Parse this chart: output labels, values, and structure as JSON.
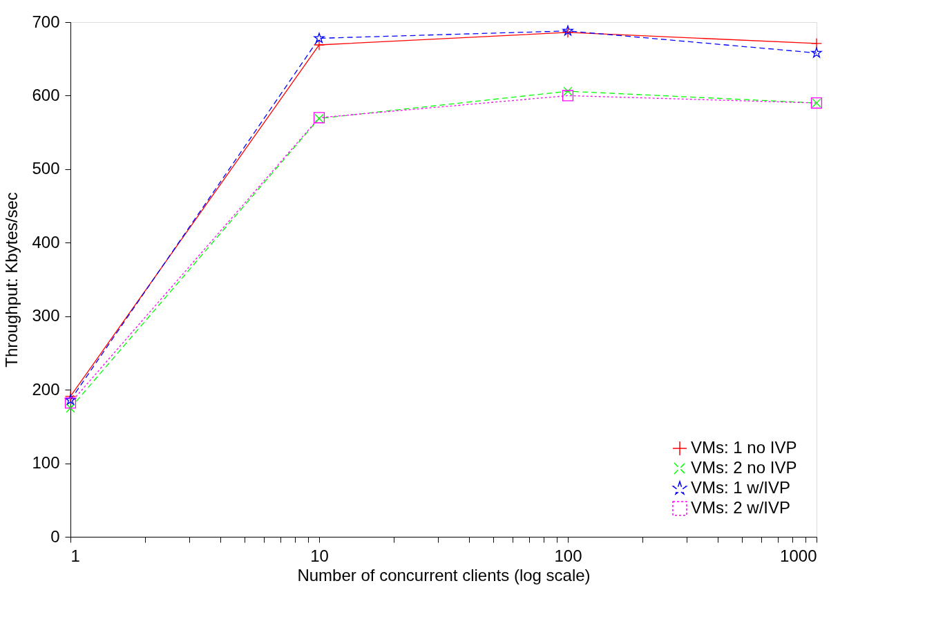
{
  "chart_data": {
    "type": "line",
    "xlabel": "Number of concurrent clients (log scale)",
    "ylabel": "Throughput: Kbytes/sec",
    "x": [
      1,
      10,
      100,
      1000
    ],
    "log": "x",
    "xlim": [
      1,
      1000
    ],
    "xticks": [
      1,
      {
        "value": 2,
        "label": null
      },
      {
        "value": 3,
        "label": null
      },
      {
        "value": 4,
        "label": null
      },
      {
        "value": 5,
        "label": null
      },
      {
        "value": 6,
        "label": null
      },
      {
        "value": 7,
        "label": null
      },
      {
        "value": 8,
        "label": null
      },
      {
        "value": 9,
        "label": null
      },
      10,
      {
        "value": 20,
        "label": null
      },
      {
        "value": 30,
        "label": null
      },
      {
        "value": 40,
        "label": null
      },
      {
        "value": 50,
        "label": null
      },
      {
        "value": 60,
        "label": null
      },
      {
        "value": 70,
        "label": null
      },
      {
        "value": 80,
        "label": null
      },
      {
        "value": 90,
        "label": null
      },
      100,
      {
        "value": 200,
        "label": null
      },
      {
        "value": 300,
        "label": null
      },
      {
        "value": 400,
        "label": null
      },
      {
        "value": 500,
        "label": null
      },
      {
        "value": 600,
        "label": null
      },
      {
        "value": 700,
        "label": null
      },
      {
        "value": 800,
        "label": null
      },
      {
        "value": 900,
        "label": null
      },
      1000
    ],
    "ylim": [
      0,
      700
    ],
    "yticks": [
      0,
      100,
      200,
      300,
      400,
      500,
      600,
      700
    ],
    "grid": false,
    "legend": "bottom right",
    "series": [
      {
        "name": "VMs: 1 no IVP",
        "color": "#ff0000",
        "marker": "cross",
        "line_style": "solid",
        "values": [
          191,
          669,
          686,
          671
        ]
      },
      {
        "name": "VMs: 2 no IVP",
        "color": "#00ff00",
        "marker": "x",
        "line_style": "dashed",
        "values": [
          175,
          569,
          606,
          590
        ]
      },
      {
        "name": "VMs: 1 w/IVP",
        "color": "#0000ff",
        "marker": "star",
        "line_style": "dashed",
        "values": [
          186,
          678,
          688,
          658
        ]
      },
      {
        "name": "VMs: 2 w/IVP",
        "color": "#ff00ff",
        "marker": "square",
        "line_style": "dotted",
        "values": [
          182,
          570,
          600,
          590
        ]
      }
    ]
  }
}
